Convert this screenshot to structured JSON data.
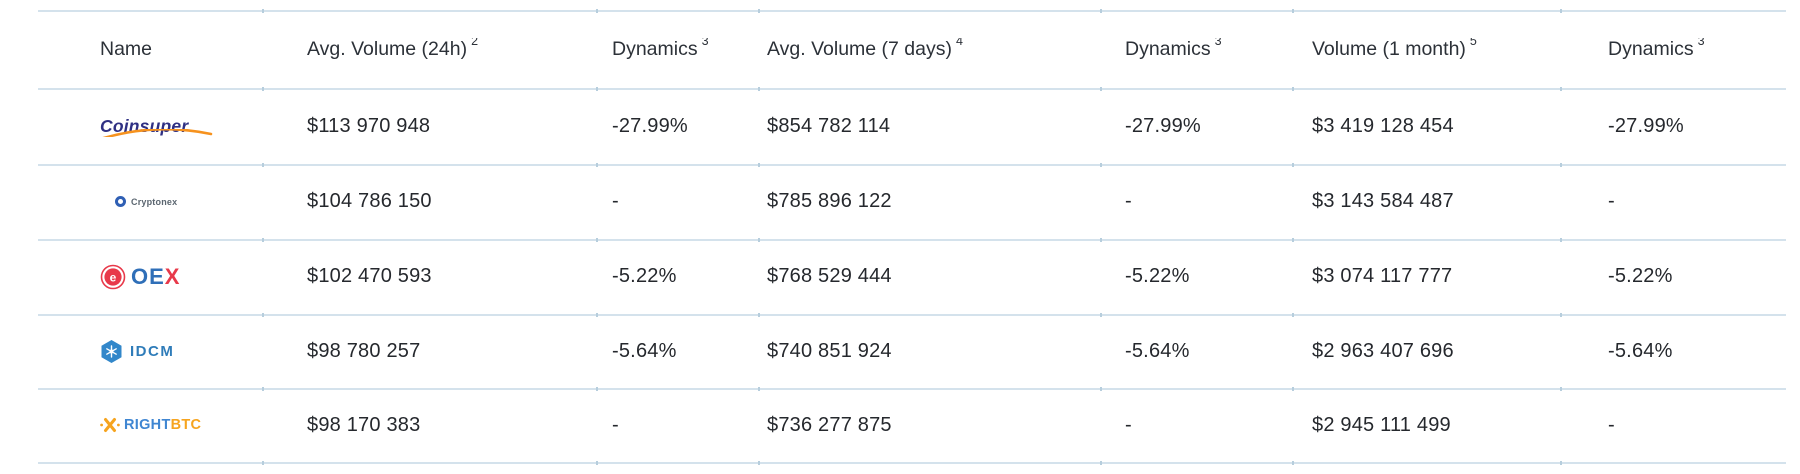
{
  "header": {
    "columns": [
      {
        "label": "Name",
        "footnote": ""
      },
      {
        "label": "Avg. Volume (24h)",
        "footnote": "2"
      },
      {
        "label": "Dynamics",
        "footnote": "3"
      },
      {
        "label": "Avg. Volume (7 days)",
        "footnote": "4"
      },
      {
        "label": "Dynamics",
        "footnote": "3"
      },
      {
        "label": "Volume (1 month)",
        "footnote": "5"
      },
      {
        "label": "Dynamics",
        "footnote": "3"
      }
    ]
  },
  "rows": [
    {
      "exchange": "Coinsuper",
      "avg_volume_24h": "$113 970 948",
      "dynamics_24h": "-27.99%",
      "avg_volume_7d": "$854 782 114",
      "dynamics_7d": "-27.99%",
      "volume_1m": "$3 419 128 454",
      "dynamics_1m": "-27.99%"
    },
    {
      "exchange": "Cryptonex",
      "avg_volume_24h": "$104 786 150",
      "dynamics_24h": "-",
      "avg_volume_7d": "$785 896 122",
      "dynamics_7d": "-",
      "volume_1m": "$3 143 584 487",
      "dynamics_1m": "-"
    },
    {
      "exchange": "OEX",
      "avg_volume_24h": "$102 470 593",
      "dynamics_24h": "-5.22%",
      "avg_volume_7d": "$768 529 444",
      "dynamics_7d": "-5.22%",
      "volume_1m": "$3 074 117 777",
      "dynamics_1m": "-5.22%"
    },
    {
      "exchange": "IDCM",
      "avg_volume_24h": "$98 780 257",
      "dynamics_24h": "-5.64%",
      "avg_volume_7d": "$740 851 924",
      "dynamics_7d": "-5.64%",
      "volume_1m": "$2 963 407 696",
      "dynamics_1m": "-5.64%"
    },
    {
      "exchange": "RightBTC",
      "avg_volume_24h": "$98 170 383",
      "dynamics_24h": "-",
      "avg_volume_7d": "$736 277 875",
      "dynamics_7d": "-",
      "volume_1m": "$2 945 111 499",
      "dynamics_1m": "-"
    }
  ],
  "logos": {
    "coinsuper": {
      "text": "Coinsuper"
    },
    "cryptonex": {
      "text": "Cryptonex"
    },
    "oex": {
      "text_oe": "OE",
      "text_x": "X"
    },
    "idcm": {
      "text": "IDCM"
    },
    "rightbtc": {
      "text_right": "RIGHT",
      "text_btc": "BTC"
    }
  },
  "colors": {
    "separator": "#d4e2ec",
    "tick": "#b7cedd",
    "text": "#25282d",
    "header_text": "#2c3138",
    "coinsuper_navy": "#2f3083",
    "coinsuper_orange": "#f6921e",
    "cryptonex_blue": "#2f5fb4",
    "cryptonex_text": "#5b6670",
    "oex_red": "#e8394a",
    "oex_blue": "#2f6fb8",
    "idcm_blue": "#3287ca",
    "idcm_text": "#2f7cb9",
    "rightbtc_blue": "#3f86d2",
    "rightbtc_orange": "#f6a41f"
  }
}
